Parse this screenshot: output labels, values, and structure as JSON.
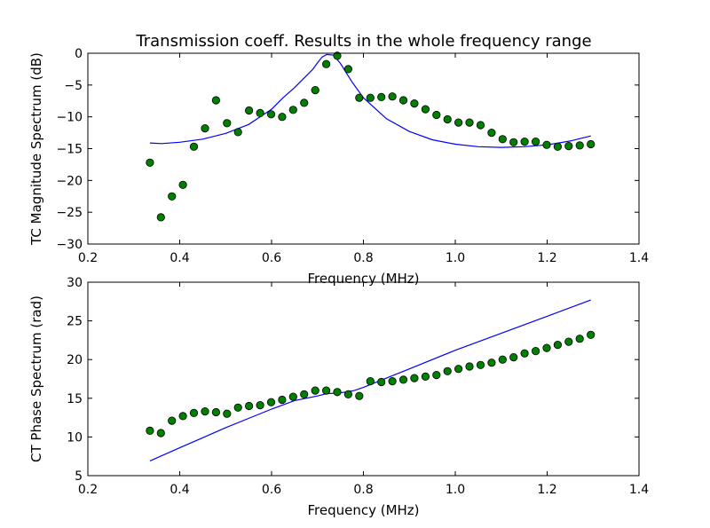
{
  "figure": {
    "title": "Transmission coeff. Results in the whole frequency range"
  },
  "chart_data": [
    {
      "type": "scatter",
      "title": "Transmission coeff. Results in the whole frequency range",
      "xlabel": "Frequency (MHz)",
      "ylabel": "TC Magnitude Spectrum (dB)",
      "xlim": [
        0.2,
        1.4
      ],
      "ylim": [
        -30,
        0
      ],
      "xticks": [
        "0.2",
        "0.4",
        "0.6",
        "0.8",
        "1.0",
        "1.2",
        "1.4"
      ],
      "yticks": [
        "−30",
        "−25",
        "−20",
        "−15",
        "−10",
        "−5",
        "0"
      ],
      "grid": false,
      "series": [
        {
          "kind": "line",
          "color": "#0000ff",
          "x": [
            0.335,
            0.36,
            0.4,
            0.45,
            0.5,
            0.55,
            0.6,
            0.625,
            0.65,
            0.675,
            0.69,
            0.7,
            0.71,
            0.72,
            0.735,
            0.75,
            0.775,
            0.8,
            0.85,
            0.9,
            0.95,
            1.0,
            1.05,
            1.1,
            1.15,
            1.2,
            1.25,
            1.295
          ],
          "y": [
            -14.1,
            -14.2,
            -14.0,
            -13.5,
            -12.6,
            -11.2,
            -8.8,
            -7.0,
            -5.4,
            -3.6,
            -2.5,
            -1.5,
            -0.6,
            -0.2,
            -0.3,
            -1.6,
            -4.5,
            -7.0,
            -10.3,
            -12.3,
            -13.6,
            -14.3,
            -14.7,
            -14.8,
            -14.7,
            -14.4,
            -13.8,
            -13.0
          ]
        },
        {
          "kind": "markers",
          "color": "#008000",
          "x": [
            0.335,
            0.359,
            0.383,
            0.407,
            0.431,
            0.455,
            0.479,
            0.503,
            0.527,
            0.551,
            0.575,
            0.599,
            0.623,
            0.647,
            0.671,
            0.695,
            0.719,
            0.743,
            0.767,
            0.791,
            0.815,
            0.839,
            0.863,
            0.887,
            0.911,
            0.935,
            0.959,
            0.983,
            1.007,
            1.031,
            1.055,
            1.079,
            1.103,
            1.127,
            1.151,
            1.175,
            1.199,
            1.223,
            1.247,
            1.271,
            1.295
          ],
          "y": [
            -17.2,
            -25.8,
            -22.5,
            -20.7,
            -14.7,
            -11.8,
            -7.4,
            -11.0,
            -12.4,
            -9.0,
            -9.4,
            -9.6,
            -10.0,
            -8.9,
            -7.8,
            -5.8,
            -1.7,
            -0.4,
            -2.5,
            -7.0,
            -7.0,
            -6.9,
            -6.8,
            -7.4,
            -7.9,
            -8.8,
            -9.7,
            -10.4,
            -10.9,
            -10.9,
            -11.3,
            -12.5,
            -13.5,
            -14.0,
            -13.9,
            -13.9,
            -14.4,
            -14.7,
            -14.6,
            -14.5,
            -14.3
          ]
        }
      ]
    },
    {
      "type": "scatter",
      "xlabel": "Frequency (MHz)",
      "ylabel": "CT Phase Spectrum (rad)",
      "xlim": [
        0.2,
        1.4
      ],
      "ylim": [
        5,
        30
      ],
      "xticks": [
        "0.2",
        "0.4",
        "0.6",
        "0.8",
        "1.0",
        "1.2",
        "1.4"
      ],
      "yticks": [
        "5",
        "10",
        "15",
        "20",
        "25",
        "30"
      ],
      "grid": false,
      "series": [
        {
          "kind": "line",
          "color": "#0000ff",
          "x": [
            0.335,
            0.4,
            0.45,
            0.5,
            0.55,
            0.6,
            0.65,
            0.7,
            0.72,
            0.75,
            0.78,
            0.8,
            0.85,
            0.9,
            1.0,
            1.1,
            1.2,
            1.295
          ],
          "y": [
            6.9,
            8.6,
            9.9,
            11.2,
            12.4,
            13.6,
            14.7,
            15.3,
            15.6,
            15.7,
            16.0,
            16.4,
            17.6,
            18.8,
            21.2,
            23.4,
            25.6,
            27.7
          ]
        },
        {
          "kind": "markers",
          "color": "#008000",
          "x": [
            0.335,
            0.359,
            0.383,
            0.407,
            0.431,
            0.455,
            0.479,
            0.503,
            0.527,
            0.551,
            0.575,
            0.599,
            0.623,
            0.647,
            0.671,
            0.695,
            0.719,
            0.743,
            0.767,
            0.791,
            0.815,
            0.839,
            0.863,
            0.887,
            0.911,
            0.935,
            0.959,
            0.983,
            1.007,
            1.031,
            1.055,
            1.079,
            1.103,
            1.127,
            1.151,
            1.175,
            1.199,
            1.223,
            1.247,
            1.271,
            1.295
          ],
          "y": [
            10.8,
            10.5,
            12.1,
            12.7,
            13.1,
            13.3,
            13.2,
            13.0,
            13.8,
            14.0,
            14.1,
            14.5,
            14.8,
            15.2,
            15.5,
            16.0,
            16.0,
            15.8,
            15.5,
            15.3,
            17.2,
            17.1,
            17.2,
            17.4,
            17.6,
            17.8,
            18.0,
            18.5,
            18.8,
            19.1,
            19.3,
            19.6,
            20.0,
            20.3,
            20.8,
            21.1,
            21.5,
            21.9,
            22.3,
            22.7,
            23.2
          ]
        }
      ]
    }
  ]
}
